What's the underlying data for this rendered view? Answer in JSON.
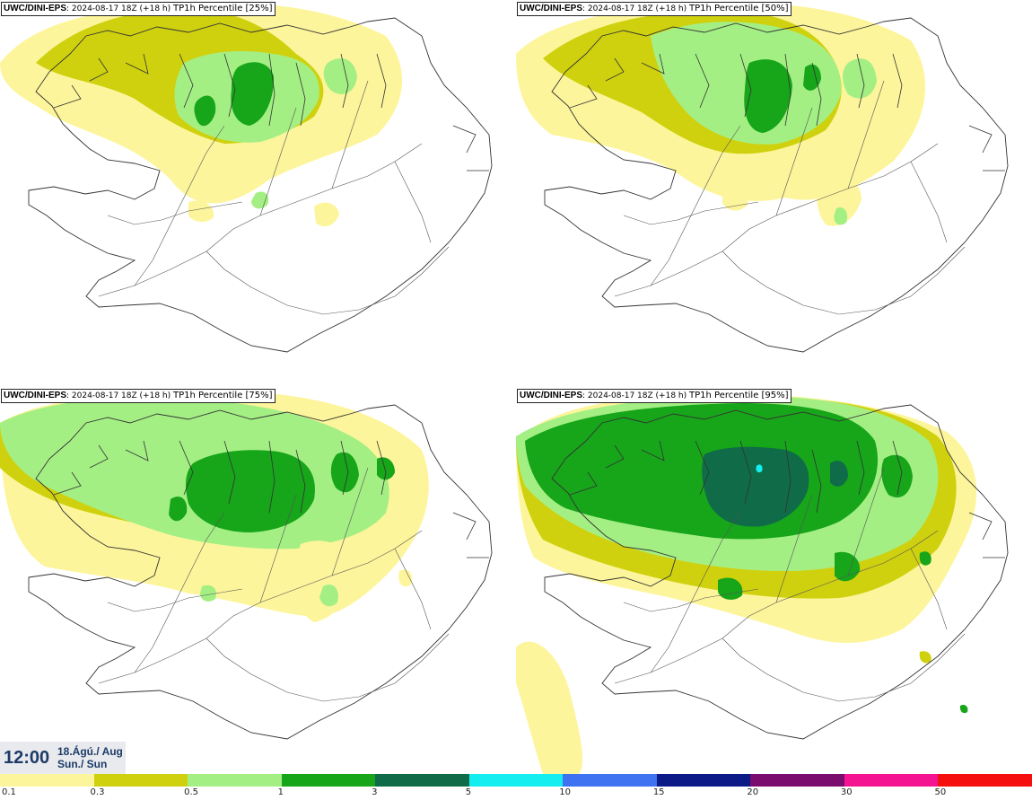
{
  "panels": [
    {
      "model": "UWC/DINI-EPS",
      "run": ": 2024-08-17 18Z (+18 h)",
      "field": "TP1h Percentile [25%]"
    },
    {
      "model": "UWC/DINI-EPS",
      "run": ": 2024-08-17 18Z (+18 h)",
      "field": "TP1h Percentile [50%]"
    },
    {
      "model": "UWC/DINI-EPS",
      "run": ": 2024-08-17 18Z (+18 h)",
      "field": "TP1h Percentile [75%]"
    },
    {
      "model": "UWC/DINI-EPS",
      "run": ": 2024-08-17 18Z (+18 h)",
      "field": "TP1h Percentile [95%]"
    }
  ],
  "valid_time": {
    "time": "12:00",
    "date_line1": "18.Ágú./ Aug",
    "date_line2": "Sun./ Sun"
  },
  "colorbar": {
    "colors": [
      "#fdf59b",
      "#cfd10f",
      "#a4ef84",
      "#17a51a",
      "#0f6b48",
      "#15eef0",
      "#3f72f1",
      "#0b1a86",
      "#7b0d6e",
      "#f41391",
      "#f60f0f"
    ],
    "ticks": [
      "0.1",
      "0.3",
      "0.5",
      "1",
      "3",
      "5",
      "10",
      "15",
      "20",
      "30",
      "50"
    ]
  }
}
